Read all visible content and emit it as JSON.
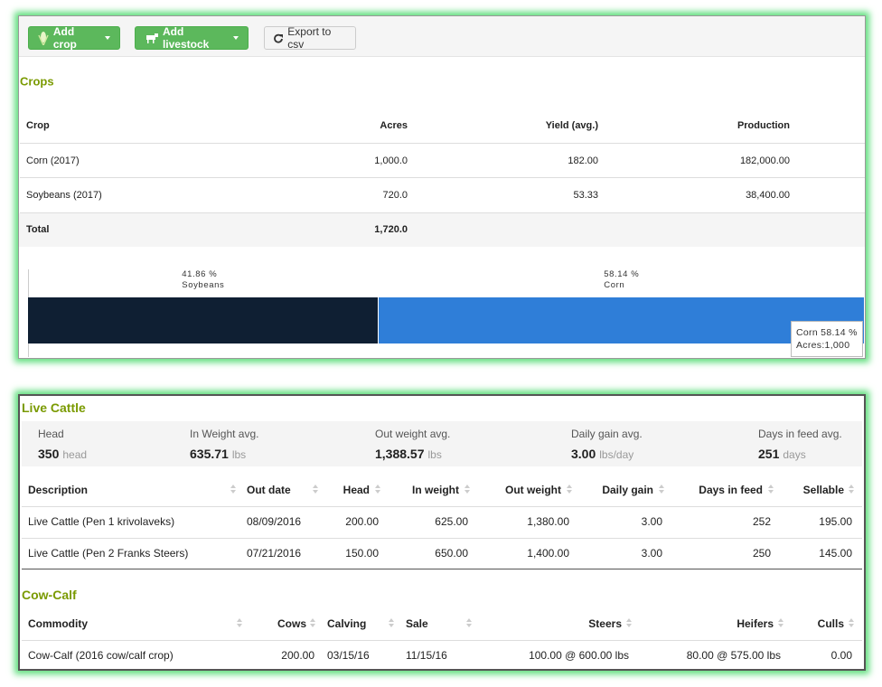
{
  "toolbar": {
    "buttons": [
      "Add crop",
      "Add livestock",
      "Export to csv"
    ]
  },
  "crops": {
    "title": "Crops",
    "headers": [
      "Crop",
      "Acres",
      "Yield (avg.)",
      "Production"
    ],
    "rows": [
      [
        "Corn (2017)",
        "1,000.0",
        "182.00",
        "182,000.00"
      ],
      [
        "Soybeans (2017)",
        "720.0",
        "53.33",
        "38,400.00"
      ]
    ],
    "total": [
      "Total",
      "1,720.0"
    ],
    "chart": {
      "segments": [
        {
          "value": 41.86,
          "label": "41.86 %",
          "name": "Soybeans",
          "color": "#0f1f33"
        },
        {
          "value": 58.14,
          "label": "58.14 %",
          "name": "Corn",
          "color": "#2f7ed8"
        }
      ],
      "tooltip": {
        "title": "Corn 58.14 %",
        "detail": "Acres:1,000"
      }
    }
  },
  "live_cattle": {
    "title": "Live Cattle",
    "summary": [
      {
        "label": "Head",
        "value": "350",
        "unit": "head"
      },
      {
        "label": "In Weight avg.",
        "value": "635.71",
        "unit": "lbs"
      },
      {
        "label": "Out weight avg.",
        "value": "1,388.57",
        "unit": "lbs"
      },
      {
        "label": "Daily gain avg.",
        "value": "3.00",
        "unit": "lbs/day"
      },
      {
        "label": "Days in feed avg.",
        "value": "251",
        "unit": "days"
      }
    ],
    "headers": [
      "Description",
      "Out date",
      "Head",
      "In weight",
      "Out weight",
      "Daily gain",
      "Days in feed",
      "Sellable"
    ],
    "rows": [
      [
        "Live Cattle (Pen 1 krivolaveks)",
        "08/09/2016",
        "200.00",
        "625.00",
        "1,380.00",
        "3.00",
        "252",
        "195.00"
      ],
      [
        "Live Cattle (Pen 2 Franks Steers)",
        "07/21/2016",
        "150.00",
        "650.00",
        "1,400.00",
        "3.00",
        "250",
        "145.00"
      ]
    ]
  },
  "cow_calf": {
    "title": "Cow-Calf",
    "headers": [
      "Commodity",
      "Cows",
      "Calving",
      "Sale",
      "Steers",
      "Heifers",
      "Culls"
    ],
    "rows": [
      [
        "Cow-Calf (2016 cow/calf crop)",
        "200.00",
        "03/15/16",
        "11/15/16",
        "100.00 @ 600.00 lbs",
        "80.00 @ 575.00 lbs",
        "0.00"
      ]
    ]
  }
}
